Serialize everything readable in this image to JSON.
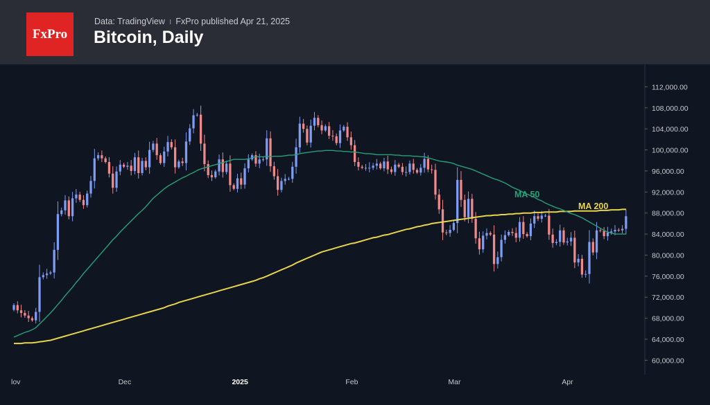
{
  "header": {
    "logo_text": "FxPro",
    "source": "Data: TradingView",
    "published": "FxPro published Apr 21, 2025",
    "title": "Bitcoin, Daily"
  },
  "colors": {
    "up": "#7f9cf5",
    "down": "#f08a8a",
    "ma50": "#26a17a",
    "ma200": "#e8d44d"
  },
  "chart_data": {
    "type": "candlestick",
    "title": "Bitcoin, Daily",
    "ylim": [
      59000,
      113500
    ],
    "y_ticks": [
      112000,
      108000,
      104000,
      100000,
      96000,
      92000,
      88000,
      84000,
      80000,
      76000,
      72000,
      68000,
      64000,
      60000
    ],
    "y_tick_labels": [
      "112,000.00",
      "108,000.00",
      "104,000.00",
      "100,000.00",
      "96,000.00",
      "92,000.00",
      "88,000.00",
      "84,000.00",
      "80,000.00",
      "76,000.00",
      "72,000.00",
      "68,000.00",
      "64,000.00",
      "60,000.00"
    ],
    "x_range_days": [
      0,
      164
    ],
    "x_ticks": [
      {
        "day": 0,
        "label": "Nov",
        "shown": "lov"
      },
      {
        "day": 30,
        "label": "Dec",
        "shown": "Dec"
      },
      {
        "day": 61,
        "label": "2025",
        "shown": "2025",
        "bold": true
      },
      {
        "day": 92,
        "label": "Feb",
        "shown": "Feb"
      },
      {
        "day": 120,
        "label": "Mar",
        "shown": "Mar"
      },
      {
        "day": 151,
        "label": "Apr",
        "shown": "Apr"
      }
    ],
    "series_labels": {
      "ma50": "MA 50",
      "ma200": "MA 200"
    },
    "close": [
      70500,
      69500,
      69000,
      68500,
      68000,
      67600,
      69200,
      75800,
      76200,
      76500,
      76700,
      81000,
      87800,
      88500,
      90400,
      87400,
      90800,
      91500,
      90500,
      89500,
      91700,
      94100,
      98400,
      99000,
      98400,
      97700,
      95500,
      92800,
      95900,
      97200,
      96800,
      97000,
      96000,
      98600,
      95600,
      97900,
      96700,
      100000,
      101200,
      99000,
      97500,
      99700,
      101500,
      100500,
      96700,
      97800,
      97500,
      101600,
      104100,
      106600,
      106700,
      101200,
      97300,
      95200,
      94800,
      95900,
      98200,
      95800,
      97400,
      93300,
      92600,
      94600,
      93400,
      96500,
      98200,
      99000,
      97400,
      98200,
      98200,
      102200,
      96900,
      95000,
      92400,
      94100,
      94500,
      94500,
      96800,
      100500,
      105000,
      104000,
      101400,
      104600,
      106100,
      104700,
      103700,
      104500,
      102700,
      102600,
      101300,
      103700,
      104400,
      102400,
      100900,
      97700,
      96800,
      96600,
      96600,
      96600,
      97000,
      97400,
      96500,
      97800,
      96300,
      95800,
      97200,
      96800,
      95800,
      95800,
      97400,
      96200,
      95700,
      96600,
      98300,
      96300,
      96200,
      91500,
      88700,
      84300,
      84200,
      84800,
      86100,
      94300,
      90500,
      87200,
      90700,
      86900,
      83200,
      81100,
      83700,
      84200,
      83900,
      78300,
      79600,
      82900,
      83800,
      84400,
      84200,
      83300,
      86300,
      84000,
      83600,
      86000,
      87400,
      86900,
      87500,
      87500,
      83900,
      82300,
      82500,
      84700,
      82400,
      82600,
      83300,
      78600,
      79300,
      76300,
      76400,
      82500,
      80500,
      84700,
      84600,
      83600,
      84300,
      84500,
      84800,
      84700,
      85000,
      87400
    ],
    "ma50": [
      64400,
      64700,
      65000,
      65300,
      65500,
      65800,
      66200,
      66900,
      67600,
      68300,
      69000,
      69800,
      70600,
      71400,
      72300,
      73100,
      73900,
      74800,
      75600,
      76500,
      77300,
      78100,
      78900,
      79700,
      80500,
      81300,
      82100,
      82900,
      83600,
      84400,
      85100,
      85800,
      86500,
      87200,
      87900,
      88500,
      89200,
      90000,
      90800,
      91400,
      92000,
      92600,
      93100,
      93500,
      93900,
      94300,
      94700,
      95000,
      95400,
      95700,
      96100,
      96400,
      96600,
      96800,
      97000,
      97200,
      97400,
      97600,
      97800,
      98000,
      98200,
      98200,
      98200,
      98200,
      98300,
      98500,
      98700,
      98700,
      98700,
      98800,
      98700,
      98800,
      98800,
      98800,
      98900,
      99000,
      99000,
      99100,
      99300,
      99400,
      99500,
      99600,
      99700,
      99800,
      99800,
      99900,
      99900,
      99900,
      99800,
      99800,
      99700,
      99700,
      99600,
      99600,
      99500,
      99400,
      99300,
      99300,
      99200,
      99100,
      99100,
      99100,
      99100,
      99100,
      99000,
      99000,
      98900,
      98900,
      98900,
      98800,
      98800,
      98700,
      98700,
      98500,
      98300,
      98100,
      97900,
      97800,
      97700,
      97600,
      97400,
      97100,
      96900,
      96700,
      96500,
      96300,
      96000,
      95700,
      95400,
      95100,
      94800,
      94500,
      94300,
      94000,
      93700,
      93300,
      92900,
      92600,
      92300,
      91900,
      91600,
      91300,
      91000,
      90600,
      90300,
      89900,
      89600,
      89300,
      89000,
      88800,
      88500,
      88200,
      87900,
      87700,
      87400,
      87100,
      86700,
      86300,
      85900,
      85500,
      85100,
      84700,
      84400,
      84200,
      84000,
      84000,
      84000,
      84000
    ],
    "ma200": [
      63200,
      63200,
      63200,
      63300,
      63300,
      63300,
      63400,
      63500,
      63600,
      63700,
      63800,
      64000,
      64200,
      64400,
      64600,
      64800,
      65000,
      65200,
      65400,
      65600,
      65800,
      66000,
      66200,
      66400,
      66600,
      66800,
      67000,
      67200,
      67400,
      67600,
      67800,
      68000,
      68200,
      68400,
      68600,
      68800,
      69000,
      69200,
      69400,
      69600,
      69800,
      70000,
      70300,
      70500,
      70700,
      71000,
      71200,
      71400,
      71600,
      71800,
      72000,
      72200,
      72400,
      72600,
      72800,
      73000,
      73200,
      73400,
      73600,
      73800,
      74000,
      74200,
      74400,
      74600,
      74800,
      75000,
      75200,
      75500,
      75700,
      76000,
      76300,
      76600,
      76900,
      77200,
      77500,
      77800,
      78100,
      78500,
      78800,
      79100,
      79400,
      79700,
      80000,
      80300,
      80600,
      80800,
      81000,
      81200,
      81400,
      81600,
      81800,
      82000,
      82200,
      82300,
      82500,
      82700,
      82900,
      83100,
      83300,
      83400,
      83600,
      83800,
      83900,
      84100,
      84300,
      84500,
      84700,
      84900,
      85000,
      85200,
      85400,
      85500,
      85700,
      85800,
      86000,
      86100,
      86200,
      86300,
      86400,
      86500,
      86600,
      86700,
      86800,
      86900,
      87000,
      87100,
      87200,
      87300,
      87400,
      87500,
      87500,
      87600,
      87600,
      87700,
      87700,
      87800,
      87800,
      87900,
      87900,
      88000,
      88000,
      88000,
      88100,
      88100,
      88100,
      88200,
      88200,
      88200,
      88200,
      88300,
      88300,
      88300,
      88300,
      88400,
      88400,
      88400,
      88400,
      88400,
      88400,
      88400,
      88500,
      88500,
      88500,
      88600,
      88600,
      88600,
      88700,
      88700
    ]
  }
}
